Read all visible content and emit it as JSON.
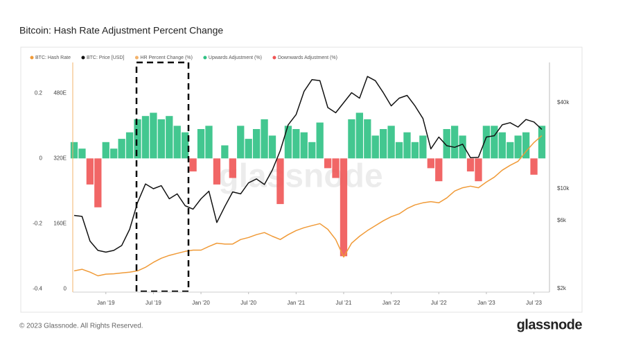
{
  "chart_data": {
    "type": "combo",
    "title": "Bitcoin: Hash Rate Adjustment Percent Change",
    "watermark": "glassnode",
    "x": [
      "2018-09",
      "2018-10",
      "2018-11",
      "2018-12",
      "2019-01",
      "2019-02",
      "2019-03",
      "2019-04",
      "2019-05",
      "2019-06",
      "2019-07",
      "2019-08",
      "2019-09",
      "2019-10",
      "2019-11",
      "2019-12",
      "2020-01",
      "2020-02",
      "2020-03",
      "2020-04",
      "2020-05",
      "2020-06",
      "2020-07",
      "2020-08",
      "2020-09",
      "2020-10",
      "2020-11",
      "2020-12",
      "2021-01",
      "2021-02",
      "2021-03",
      "2021-04",
      "2021-05",
      "2021-06",
      "2021-07",
      "2021-08",
      "2021-09",
      "2021-10",
      "2021-11",
      "2021-12",
      "2022-01",
      "2022-02",
      "2022-03",
      "2022-04",
      "2022-05",
      "2022-06",
      "2022-07",
      "2022-08",
      "2022-09",
      "2022-10",
      "2022-11",
      "2022-12",
      "2023-01",
      "2023-02",
      "2023-03",
      "2023-04",
      "2023-05",
      "2023-06",
      "2023-07",
      "2023-08"
    ],
    "xlim": [
      "2018-09",
      "2023-08"
    ],
    "xticks": [
      {
        "value": "2019-01",
        "label": "Jan '19"
      },
      {
        "value": "2019-07",
        "label": "Jul '19"
      },
      {
        "value": "2020-01",
        "label": "Jan '20"
      },
      {
        "value": "2020-07",
        "label": "Jul '20"
      },
      {
        "value": "2021-01",
        "label": "Jan '21"
      },
      {
        "value": "2021-07",
        "label": "Jul '21"
      },
      {
        "value": "2022-01",
        "label": "Jan '22"
      },
      {
        "value": "2022-07",
        "label": "Jul '22"
      },
      {
        "value": "2023-01",
        "label": "Jan '23"
      },
      {
        "value": "2023-07",
        "label": "Jul '23"
      }
    ],
    "ylim": [
      -0.41,
      0.29
    ],
    "yticks": [
      -0.4,
      -0.2,
      0,
      0.2
    ],
    "y3lim": [
      -8,
      552
    ],
    "y3ticks": [
      0,
      {
        "value": 160,
        "label": "160E"
      },
      {
        "value": 320,
        "label": "320E"
      },
      {
        "value": 480,
        "label": "480E"
      }
    ],
    "y2lim": [
      1890,
      74800
    ],
    "y2log": true,
    "y2ticks": [
      {
        "value": 2000,
        "label": "$2k"
      },
      {
        "value": 6000,
        "label": "$6k"
      },
      {
        "value": 10000,
        "label": "$10k"
      },
      {
        "value": 40000,
        "label": "$40k"
      }
    ],
    "series": [
      {
        "name": "BTC: Hash Rate",
        "color": "#f09a37",
        "kind": "line",
        "axis": "y3",
        "values": [
          44,
          48,
          41,
          32,
          36,
          37,
          39,
          41,
          44,
          53,
          65,
          75,
          82,
          87,
          92,
          95,
          95,
          104,
          112,
          110,
          110,
          121,
          126,
          133,
          138,
          129,
          121,
          133,
          143,
          150,
          155,
          160,
          146,
          121,
          78,
          112,
          129,
          143,
          155,
          167,
          177,
          184,
          197,
          206,
          211,
          214,
          211,
          223,
          240,
          248,
          252,
          248,
          262,
          274,
          291,
          303,
          313,
          337,
          359,
          376
        ]
      },
      {
        "name": "BTC: Price [USD]",
        "color": "#111111",
        "kind": "line",
        "axis": "y2",
        "values": [
          6500,
          6400,
          4300,
          3700,
          3600,
          3700,
          4000,
          5200,
          8000,
          10800,
          10000,
          10500,
          8500,
          9200,
          7600,
          7200,
          8500,
          9600,
          5800,
          7500,
          9500,
          9200,
          11000,
          11700,
          10700,
          13500,
          18500,
          28000,
          33000,
          48000,
          58000,
          57000,
          37000,
          34000,
          40000,
          47000,
          43000,
          61000,
          57000,
          47000,
          38000,
          43000,
          45000,
          38000,
          31000,
          19000,
          23000,
          20000,
          19500,
          20500,
          16500,
          16600,
          23000,
          23500,
          28000,
          29000,
          27000,
          30500,
          29300,
          26000
        ]
      },
      {
        "name": "HR Percent Change (%)",
        "color": "#f3b36b",
        "kind": "bar",
        "values": [
          0.05,
          0.03,
          -0.08,
          -0.15,
          0.05,
          0.03,
          0.06,
          0.08,
          0.12,
          0.13,
          0.14,
          0.12,
          0.13,
          0.1,
          0.08,
          -0.04,
          0.09,
          0.1,
          -0.08,
          0.04,
          -0.06,
          0.1,
          0.06,
          0.09,
          0.12,
          0.07,
          -0.14,
          0.1,
          0.09,
          0.08,
          0.05,
          0.11,
          -0.03,
          -0.06,
          -0.3,
          0.12,
          0.14,
          0.12,
          0.07,
          0.09,
          0.1,
          0.05,
          0.08,
          0.05,
          0.07,
          -0.03,
          -0.07,
          0.09,
          0.1,
          0.07,
          -0.04,
          -0.07,
          0.1,
          0.1,
          0.08,
          0.05,
          0.07,
          0.08,
          -0.05,
          0.1
        ]
      },
      {
        "name": "Upwards Adjustment (%)",
        "color": "#2fc184",
        "kind": "up"
      },
      {
        "name": "Downwards Adjustment (%)",
        "color": "#f05555",
        "kind": "down"
      }
    ]
  },
  "footer": {
    "copyright": "© 2023 Glassnode. All Rights Reserved.",
    "logo": "glassnode"
  }
}
